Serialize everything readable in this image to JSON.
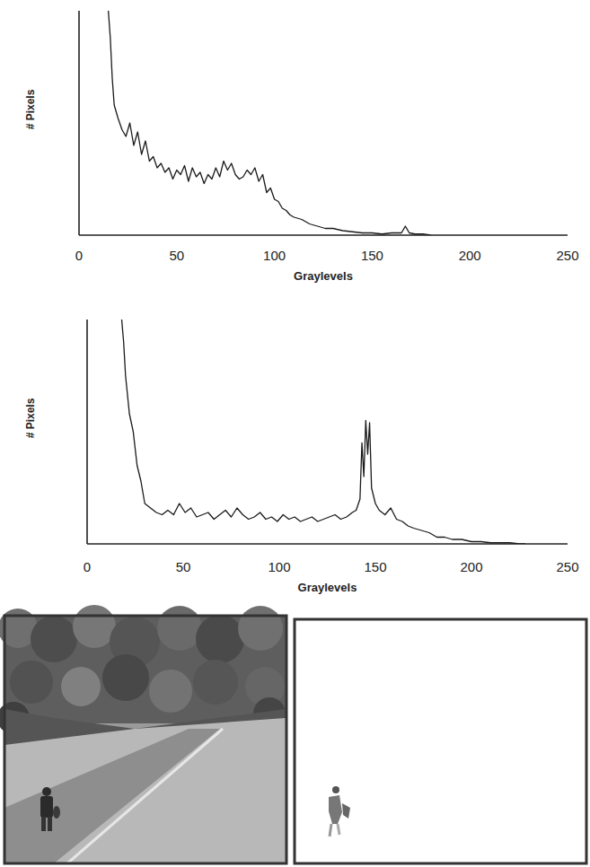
{
  "chart_data": [
    {
      "type": "line",
      "x_label": "Graylevels",
      "y_label": "# Pixels",
      "color": "#1a1a1a",
      "x": [
        15,
        16,
        17,
        18,
        20,
        22,
        24,
        26,
        28,
        30,
        32,
        34,
        36,
        38,
        40,
        42,
        44,
        46,
        48,
        50,
        52,
        54,
        56,
        58,
        60,
        62,
        64,
        66,
        68,
        70,
        72,
        74,
        76,
        78,
        80,
        82,
        84,
        86,
        88,
        90,
        92,
        94,
        96,
        98,
        100,
        102,
        104,
        106,
        108,
        110,
        114,
        118,
        122,
        126,
        130,
        135,
        140,
        145,
        150,
        155,
        160,
        165,
        167,
        169,
        172,
        176,
        180
      ],
      "values": [
        100,
        88,
        70,
        58,
        52,
        47,
        44,
        50,
        40,
        46,
        36,
        42,
        33,
        35,
        30,
        32,
        28,
        30,
        25,
        29,
        27,
        31,
        24,
        30,
        26,
        28,
        23,
        27,
        25,
        30,
        26,
        33,
        29,
        32,
        27,
        25,
        26,
        29,
        27,
        30,
        24,
        27,
        19,
        21,
        16,
        15,
        12,
        11,
        9,
        8,
        7,
        5,
        4,
        3,
        3,
        2,
        1.5,
        1,
        1,
        0.5,
        1,
        1,
        4,
        1,
        0.5,
        0.5,
        0
      ],
      "xlim": [
        0,
        250
      ],
      "xticks": [
        0,
        50,
        100,
        150,
        200,
        250
      ],
      "ylim": [
        0,
        100
      ],
      "tick_labels": "x"
    },
    {
      "type": "line",
      "x_label": "Graylevels",
      "y_label": "# Pixels",
      "color": "#1a1a1a",
      "x": [
        18,
        19,
        20,
        22,
        24,
        26,
        28,
        30,
        33,
        36,
        39,
        42,
        45,
        48,
        51,
        54,
        57,
        60,
        63,
        66,
        69,
        72,
        75,
        78,
        81,
        84,
        87,
        90,
        93,
        96,
        99,
        102,
        105,
        108,
        111,
        114,
        117,
        120,
        123,
        126,
        129,
        132,
        135,
        138,
        140,
        142,
        143,
        144,
        145,
        146,
        147,
        148,
        150,
        152,
        155,
        158,
        161,
        164,
        167,
        170,
        174,
        178,
        182,
        186,
        190,
        195,
        200,
        205,
        210,
        215,
        220,
        225,
        228
      ],
      "values": [
        100,
        90,
        75,
        58,
        50,
        35,
        28,
        18,
        16,
        14,
        13,
        15,
        13,
        18,
        14,
        16,
        12,
        13,
        14,
        11,
        13,
        15,
        12,
        16,
        13,
        11,
        12,
        14,
        11,
        12,
        10,
        13,
        11,
        12,
        10,
        11,
        12,
        10,
        11,
        12,
        13,
        11,
        12,
        14,
        15,
        20,
        45,
        30,
        55,
        40,
        54,
        25,
        18,
        15,
        13,
        16,
        11,
        10,
        8,
        7,
        6,
        5,
        3,
        3,
        2,
        2,
        1,
        1,
        0.5,
        0.5,
        0.5,
        0,
        0
      ],
      "xlim": [
        0,
        250
      ],
      "xticks": [
        0,
        50,
        100,
        150,
        200,
        250
      ],
      "ylim": [
        0,
        100
      ],
      "tick_labels": "x"
    }
  ]
}
